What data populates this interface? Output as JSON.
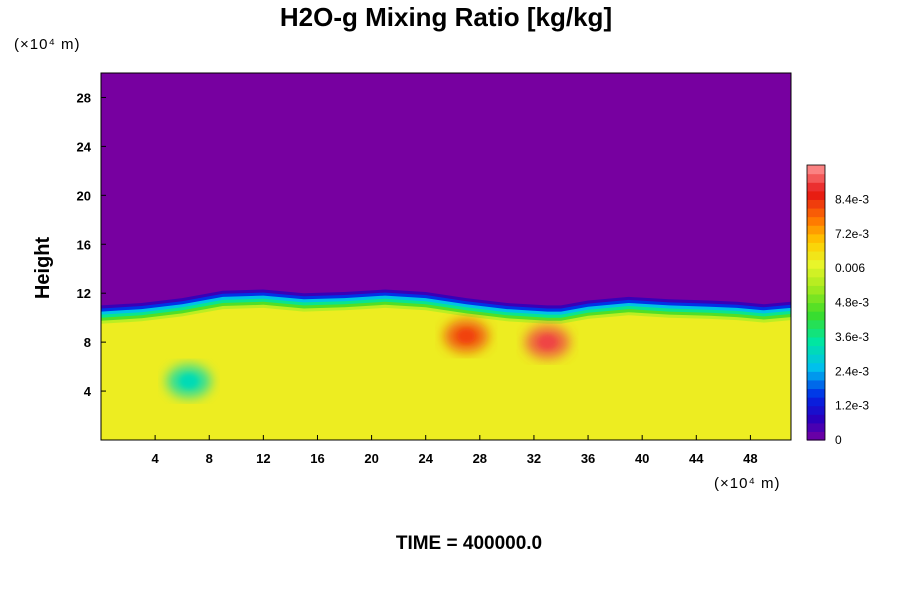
{
  "chart_data": {
    "type": "heatmap",
    "title": "H2O-g Mixing Ratio [kg/kg]",
    "ylabel": "Height",
    "xlabel": "",
    "x_unit": "(×10⁴ m)",
    "y_unit": "(×10⁴ m)",
    "xlim": [
      0,
      51
    ],
    "ylim": [
      0,
      30
    ],
    "x_ticks": [
      "4",
      "8",
      "12",
      "16",
      "20",
      "24",
      "28",
      "32",
      "36",
      "40",
      "44",
      "48"
    ],
    "y_ticks": [
      "4",
      "8",
      "12",
      "16",
      "20",
      "24",
      "28"
    ],
    "colorbar": {
      "min": 0,
      "max": 0.0096,
      "labels": [
        "0",
        "1.2e-3",
        "2.4e-3",
        "3.6e-3",
        "4.8e-3",
        "0.006",
        "7.2e-3",
        "8.4e-3"
      ],
      "label_values": [
        0,
        0.0012,
        0.0024,
        0.0036,
        0.0048,
        0.006,
        0.0072,
        0.0084
      ]
    },
    "field": {
      "upper_layer_value": 0,
      "moist_layer_top_height": [
        11,
        11.2,
        11.6,
        12.2,
        12.3,
        12.0,
        12.1,
        12.3,
        12.1,
        11.6,
        11.2,
        11.0,
        11.0,
        11.4,
        11.7,
        11.5,
        11.4,
        11.3,
        11.1,
        11.3
      ],
      "moist_layer_top_x": [
        0,
        3,
        6,
        9,
        12,
        15,
        18,
        21,
        24,
        27,
        30,
        33,
        34,
        36,
        39,
        42,
        45,
        47,
        49,
        51
      ],
      "background_value": 0.0063,
      "features": [
        {
          "label": "dry pocket",
          "x": 6.5,
          "y": 4.8,
          "value": 0.0032
        },
        {
          "label": "moist core",
          "x": 27,
          "y": 8.5,
          "value": 0.0082
        },
        {
          "label": "moist core",
          "x": 33,
          "y": 8,
          "value": 0.009
        }
      ]
    },
    "colors": {
      "top_layer": "#7700a0",
      "background": "#e8f52a"
    }
  },
  "footer": {
    "time_label": "TIME = 400000.0"
  }
}
